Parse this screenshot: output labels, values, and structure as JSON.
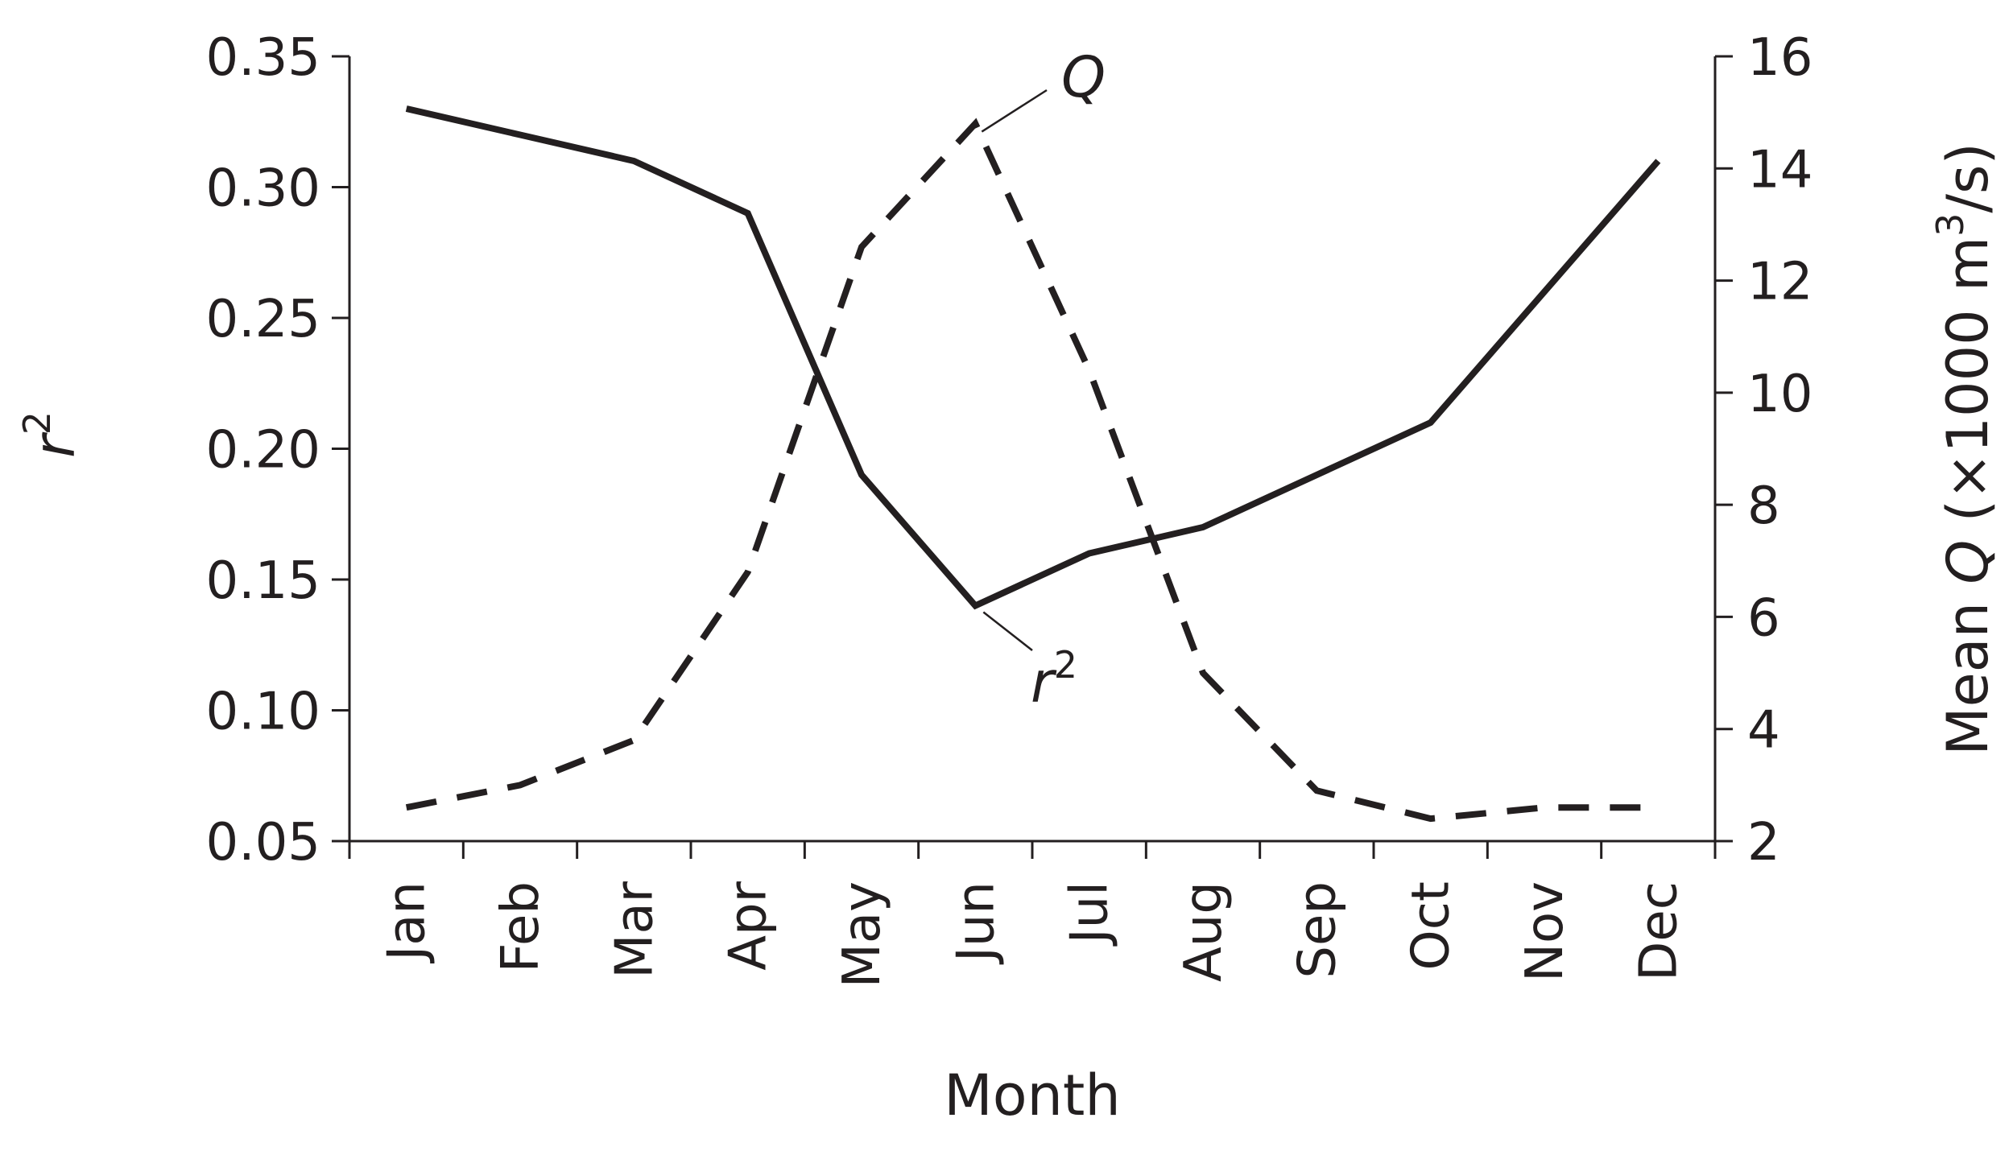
{
  "chart_data": {
    "type": "line",
    "categories": [
      "Jan",
      "Feb",
      "Mar",
      "Apr",
      "May",
      "Jun",
      "Jul",
      "Aug",
      "Sep",
      "Oct",
      "Nov",
      "Dec"
    ],
    "xlabel": "Month",
    "ylabel_left": {
      "italic": "r",
      "sup": "2"
    },
    "ylabel_right": {
      "pre": "Mean ",
      "italic": "Q",
      "post1": " (×1000 m",
      "sup": "3",
      "post2": "/s)"
    },
    "y_left": {
      "min": 0.05,
      "max": 0.35,
      "ticks": [
        "0.05",
        "0.10",
        "0.15",
        "0.20",
        "0.25",
        "0.30",
        "0.35"
      ]
    },
    "y_right": {
      "min": 2,
      "max": 16,
      "ticks": [
        "2",
        "4",
        "6",
        "8",
        "10",
        "12",
        "14",
        "16"
      ]
    },
    "series": [
      {
        "name": {
          "italic": "r",
          "sup": "2"
        },
        "axis": "left",
        "style": "solid",
        "values": [
          0.33,
          0.32,
          0.31,
          0.29,
          0.19,
          0.14,
          0.16,
          0.17,
          0.19,
          0.21,
          0.26,
          0.31
        ]
      },
      {
        "name": {
          "italic": "Q",
          "sup": ""
        },
        "axis": "right",
        "style": "dashed",
        "values": [
          2.6,
          3.0,
          3.8,
          6.8,
          12.6,
          14.8,
          10.4,
          5.0,
          2.9,
          2.4,
          2.6,
          2.6
        ]
      }
    ],
    "grid": false,
    "legend": "inline labels near lines",
    "colors": {
      "ink": "#231f20"
    }
  }
}
